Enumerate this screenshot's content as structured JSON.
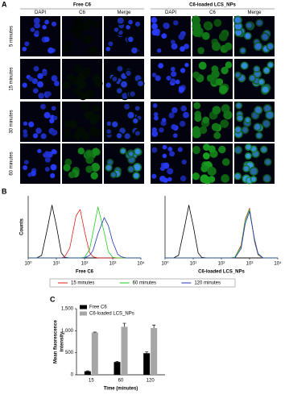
{
  "panel_a": {
    "label": "A",
    "groups": [
      {
        "title": "Free C6",
        "columns": [
          "DAPI",
          "C6",
          "Merge"
        ]
      },
      {
        "title": "C6-loaded LCS_NPs",
        "columns": [
          "DAPI",
          "C6",
          "Merge"
        ]
      }
    ],
    "rows": [
      "5 minutes",
      "15 minutes",
      "30 minutes",
      "60 minutes"
    ]
  },
  "panel_b_label": "B",
  "panel_c_label": "C",
  "chart_data": [
    {
      "type": "line",
      "xscale": "log",
      "xlabel": "Free C6",
      "ylabel": "Counts",
      "x": [
        1,
        2,
        3,
        5,
        7,
        10,
        15,
        20,
        30,
        50,
        70,
        100,
        150,
        200,
        300,
        500,
        700,
        1000,
        1500,
        2000,
        3000,
        5000,
        7000,
        10000
      ],
      "xlim": [
        1,
        10000
      ],
      "xticks": [
        {
          "value": 1,
          "label": "10⁰"
        },
        {
          "value": 10,
          "label": "10¹"
        },
        {
          "value": 100,
          "label": "10²"
        },
        {
          "value": 1000,
          "label": "10³"
        },
        {
          "value": 10000,
          "label": "10⁴"
        }
      ],
      "ylim": [
        0,
        100
      ],
      "series": [
        {
          "color": "#000000",
          "values": [
            0,
            0,
            4,
            51,
            85,
            52,
            8,
            1,
            0,
            0,
            0,
            0,
            0,
            0,
            0,
            0,
            0,
            0,
            0,
            0,
            0,
            0,
            0,
            0
          ]
        },
        {
          "name": "15 minutes",
          "color": "#e0201b",
          "values": [
            0,
            0,
            0,
            0,
            0,
            0,
            0,
            2,
            16,
            68,
            78,
            43,
            9,
            2,
            0,
            0,
            0,
            0,
            0,
            0,
            0,
            0,
            0,
            0
          ]
        },
        {
          "name": "60 minutes",
          "color": "#22cc22",
          "values": [
            0,
            0,
            0,
            0,
            0,
            0,
            0,
            0,
            0,
            0,
            0,
            1,
            13,
            41,
            82,
            41,
            10,
            1,
            0,
            0,
            0,
            0,
            0,
            0
          ]
        },
        {
          "name": "120 minutes",
          "color": "#2233bb",
          "values": [
            0,
            0,
            0,
            0,
            0,
            0,
            0,
            0,
            0,
            0,
            0,
            0,
            4,
            12,
            39,
            65,
            52,
            26,
            6,
            2,
            0,
            0,
            0,
            0
          ]
        }
      ]
    },
    {
      "type": "line",
      "xscale": "log",
      "xlabel": "C6-loaded LCS_NPs",
      "x": [
        1,
        2,
        3,
        5,
        7,
        10,
        15,
        20,
        30,
        50,
        70,
        100,
        150,
        200,
        300,
        500,
        700,
        1000,
        1500,
        2000,
        3000,
        5000,
        7000,
        10000
      ],
      "xlim": [
        1,
        10000
      ],
      "xticks": [
        {
          "value": 1,
          "label": "10⁰"
        },
        {
          "value": 10,
          "label": "10¹"
        },
        {
          "value": 100,
          "label": "10²"
        },
        {
          "value": 1000,
          "label": "10³"
        },
        {
          "value": 10000,
          "label": "10⁴"
        }
      ],
      "ylim": [
        0,
        100
      ],
      "series": [
        {
          "color": "#000000",
          "values": [
            0,
            0,
            4,
            51,
            85,
            52,
            8,
            1,
            0,
            0,
            0,
            0,
            0,
            0,
            0,
            0,
            0,
            0,
            0,
            0,
            0,
            0,
            0,
            0
          ]
        },
        {
          "color": "#e0201b",
          "values": [
            0,
            0,
            0,
            0,
            0,
            0,
            0,
            0,
            0,
            0,
            0,
            0,
            0,
            0,
            1,
            20,
            62,
            80,
            26,
            5,
            0,
            0,
            0,
            0
          ]
        },
        {
          "color": "#22cc22",
          "values": [
            0,
            0,
            0,
            0,
            0,
            0,
            0,
            0,
            0,
            0,
            0,
            0,
            0,
            0,
            1,
            18,
            60,
            78,
            28,
            6,
            0,
            0,
            0,
            0
          ]
        },
        {
          "color": "#2233bb",
          "values": [
            0,
            0,
            0,
            0,
            0,
            0,
            0,
            0,
            0,
            0,
            0,
            0,
            0,
            0,
            0,
            15,
            55,
            75,
            30,
            7,
            0,
            0,
            0,
            0
          ]
        }
      ]
    },
    {
      "type": "bar",
      "xlabel": "Time (minutes)",
      "ylabel": [
        "Mean fluorescence",
        "intensity"
      ],
      "categories": [
        "15",
        "60",
        "120"
      ],
      "ylim": [
        0,
        1500
      ],
      "yticks": [
        0,
        500,
        {
          "value": 1000,
          "label": "1,000"
        },
        {
          "value": 1500,
          "label": "1,500"
        }
      ],
      "series": [
        {
          "name": "Free C6",
          "color": "#000000",
          "values": [
            80,
            290,
            490
          ],
          "errors": [
            10,
            15,
            30
          ]
        },
        {
          "name": "C6-loaded LCS_NPs",
          "color": "#a6a6a6",
          "values": [
            960,
            1090,
            1060
          ],
          "errors": [
            10,
            80,
            70
          ]
        }
      ]
    }
  ]
}
